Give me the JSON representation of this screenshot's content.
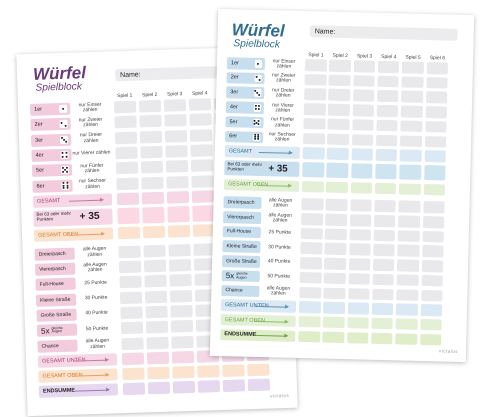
{
  "title": "Würfel",
  "subtitle": "Spielblock",
  "name_label": "Name:",
  "columns": [
    "Spiel 1",
    "Spiel 2",
    "Spiel 3",
    "Spiel 4",
    "Spiel 5",
    "Spiel 6"
  ],
  "upper": [
    {
      "label": "1er",
      "pips": 1,
      "desc": "nur Einser zählen"
    },
    {
      "label": "2er",
      "pips": 2,
      "desc": "nur Zweier zählen"
    },
    {
      "label": "3er",
      "pips": 3,
      "desc": "nur Dreier zählen"
    },
    {
      "label": "4er",
      "pips": 4,
      "desc": "nur Vierer zählen"
    },
    {
      "label": "5er",
      "pips": 5,
      "desc": "nur Fünfer zählen"
    },
    {
      "label": "6er",
      "pips": 6,
      "desc": "nur Sechser zählen"
    }
  ],
  "gesamt": "GESAMT",
  "bonus_label": "Bei 63 oder mehr Punkten",
  "bonus_value": "+ 35",
  "gesamt_oben": "GESAMT OBEN",
  "lower": [
    {
      "label": "Dreierpasch",
      "desc": "alle Augen zählen"
    },
    {
      "label": "Viererpasch",
      "desc": "alle Augen zählen"
    },
    {
      "label": "Full-House",
      "desc": "25 Punkte"
    },
    {
      "label": "Kleine Straße",
      "desc": "30 Punkte"
    },
    {
      "label": "Große Straße",
      "desc": "40 Punkte"
    },
    {
      "label": "5x",
      "sub": "gleiche Augen",
      "desc": "50 Punkte"
    },
    {
      "label": "Chance",
      "desc": "alle Augen zählen"
    }
  ],
  "gesamt_unten": "GESAMT UNTEN",
  "endsumme": "ENDSUMME",
  "brand": "victalos",
  "themes": {
    "back": {
      "title": "#6b3a78",
      "label": "#f2ccdc",
      "upperCell": "#e9e9ec",
      "bandA": "#f6d7e6",
      "bandB": "#fbe3cf",
      "bandC": "#e6d8ef",
      "bonusLabel": "#f6d7e6",
      "bonusCell": "#fbd8e4",
      "lowerLabel": "#f2ccdc",
      "arrowA": "#c27ba0",
      "arrowB": "#e8a05e",
      "arrowC": "#9a7ab5",
      "textA": "#a33a6e",
      "textB": "#d07a2a",
      "textC": "#6b3a78"
    },
    "front": {
      "title": "#2f6d8f",
      "label": "#c7deef",
      "upperCell": "#e9e9ec",
      "bandA": "#dbe9f4",
      "bandB": "#e3f0d6",
      "bandC": "#dfeec9",
      "bonusLabel": "#c7deef",
      "bonusCell": "#cfe4f1",
      "lowerLabel": "#c7deef",
      "arrowA": "#5b95be",
      "arrowB": "#8cbf62",
      "arrowC": "#6fa84c",
      "textA": "#2f6d8f",
      "textB": "#6aa445",
      "textC": "#4d7d2e"
    }
  }
}
